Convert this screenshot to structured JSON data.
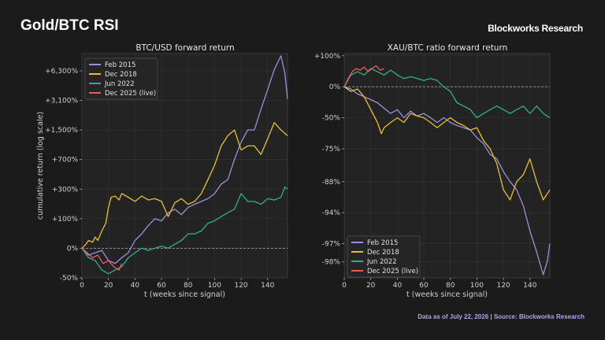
{
  "header": {
    "title": "Gold/BTC RSI",
    "brand": "Blockworks Research"
  },
  "footer": {
    "note": "Data as of July 22, 2026 | Source: Blockworks Research"
  },
  "colors": {
    "background": "#1b1b1b",
    "plot_bg": "#232323",
    "grid": "#343434",
    "Feb 2015": "#9c8fe0",
    "Dec 2018": "#e6c12a",
    "Jun 2022": "#2fb08a",
    "Dec 2025 (live)": "#ee5a5a"
  },
  "chart_data": [
    {
      "type": "line",
      "title": "BTC/USD forward return",
      "xlabel": "t (weeks since signal)",
      "ylabel": "cumulative return (log scale)",
      "xlim": [
        0,
        155
      ],
      "x_ticks": [
        0,
        20,
        40,
        60,
        80,
        100,
        120,
        140
      ],
      "y_scale": "log",
      "y_ticks": [
        "-50%",
        "0%",
        "+100%",
        "+300%",
        "+700%",
        "+1,500%",
        "+3,100%",
        "+6,300%"
      ],
      "y_tick_values": [
        -50,
        0,
        100,
        300,
        700,
        1500,
        3100,
        6300
      ],
      "ylim": [
        -50,
        10000
      ],
      "legend_position": "top-left",
      "grid": true,
      "zero_line": "dashed",
      "series": [
        {
          "name": "Feb 2015",
          "x": [
            0,
            5,
            10,
            15,
            20,
            25,
            30,
            35,
            40,
            45,
            50,
            55,
            60,
            65,
            70,
            75,
            80,
            85,
            90,
            95,
            100,
            105,
            110,
            115,
            120,
            125,
            130,
            135,
            140,
            145,
            150,
            153,
            155
          ],
          "y": [
            0,
            -15,
            -10,
            -5,
            -25,
            -30,
            -20,
            -10,
            20,
            40,
            70,
            100,
            90,
            130,
            150,
            120,
            160,
            180,
            200,
            220,
            260,
            350,
            400,
            700,
            1100,
            1500,
            1500,
            2500,
            4000,
            6500,
            9000,
            6000,
            3200
          ]
        },
        {
          "name": "Dec 2018",
          "x": [
            0,
            3,
            5,
            8,
            10,
            12,
            15,
            18,
            20,
            22,
            25,
            28,
            30,
            35,
            40,
            45,
            50,
            55,
            60,
            65,
            70,
            75,
            80,
            85,
            90,
            95,
            100,
            105,
            110,
            115,
            120,
            125,
            130,
            135,
            140,
            145,
            150,
            155
          ],
          "y": [
            0,
            10,
            20,
            15,
            30,
            20,
            50,
            80,
            160,
            230,
            240,
            210,
            260,
            230,
            200,
            240,
            210,
            220,
            200,
            110,
            190,
            220,
            180,
            200,
            260,
            400,
            600,
            1000,
            1300,
            1500,
            900,
            1000,
            1000,
            800,
            1200,
            1800,
            1500,
            1300
          ]
        },
        {
          "name": "Jun 2022",
          "x": [
            0,
            5,
            10,
            15,
            20,
            25,
            30,
            35,
            40,
            45,
            50,
            55,
            60,
            65,
            70,
            75,
            80,
            85,
            90,
            95,
            100,
            105,
            110,
            115,
            120,
            125,
            130,
            135,
            140,
            145,
            150,
            153,
            155
          ],
          "y": [
            0,
            -20,
            -25,
            -40,
            -45,
            -40,
            -35,
            -20,
            -10,
            0,
            -5,
            0,
            5,
            0,
            10,
            20,
            40,
            40,
            50,
            80,
            90,
            110,
            130,
            150,
            260,
            200,
            200,
            180,
            220,
            210,
            230,
            320,
            300
          ]
        },
        {
          "name": "Dec 2025 (live)",
          "x": [
            0,
            4,
            8,
            12,
            16,
            20,
            24,
            28,
            30
          ],
          "y": [
            0,
            -10,
            -20,
            -15,
            -30,
            -25,
            -35,
            -40,
            -30
          ]
        }
      ]
    },
    {
      "type": "line",
      "title": "XAU/BTC ratio forward return",
      "xlabel": "t (weeks since signal)",
      "ylabel": "",
      "xlim": [
        0,
        155
      ],
      "x_ticks": [
        0,
        20,
        40,
        60,
        80,
        100,
        120,
        140
      ],
      "y_scale": "log",
      "y_ticks": [
        "+100%",
        "0%",
        "-50%",
        "-75%",
        "-88%",
        "-94%",
        "-97%",
        "-98%"
      ],
      "y_tick_values": [
        100,
        0,
        -50,
        -75,
        -88,
        -94,
        -97,
        -98
      ],
      "legend_position": "bottom-left",
      "grid": true,
      "zero_line": "dashed",
      "series": [
        {
          "name": "Feb 2015",
          "x": [
            0,
            5,
            10,
            15,
            20,
            25,
            30,
            35,
            40,
            45,
            50,
            55,
            60,
            65,
            70,
            75,
            80,
            85,
            90,
            95,
            100,
            105,
            110,
            115,
            120,
            125,
            130,
            135,
            140,
            145,
            150,
            153,
            155
          ],
          "y": [
            0,
            -5,
            -15,
            -20,
            -25,
            -30,
            -38,
            -45,
            -40,
            -50,
            -42,
            -48,
            -45,
            -50,
            -55,
            -50,
            -55,
            -58,
            -60,
            -62,
            -68,
            -72,
            -78,
            -80,
            -85,
            -88,
            -90,
            -93,
            -96,
            -97.5,
            -98.5,
            -98,
            -97
          ]
        },
        {
          "name": "Dec 2018",
          "x": [
            0,
            5,
            10,
            15,
            20,
            25,
            28,
            30,
            35,
            40,
            45,
            50,
            55,
            60,
            65,
            70,
            75,
            80,
            85,
            90,
            95,
            100,
            105,
            110,
            115,
            120,
            125,
            130,
            135,
            140,
            145,
            150,
            155
          ],
          "y": [
            0,
            -10,
            -5,
            -20,
            -40,
            -55,
            -65,
            -60,
            -55,
            -50,
            -55,
            -45,
            -48,
            -50,
            -55,
            -60,
            -55,
            -50,
            -55,
            -58,
            -62,
            -60,
            -70,
            -75,
            -82,
            -90,
            -92,
            -88,
            -86,
            -80,
            -88,
            -92,
            -90
          ]
        },
        {
          "name": "Jun 2022",
          "x": [
            0,
            5,
            10,
            15,
            20,
            25,
            30,
            35,
            40,
            45,
            50,
            55,
            60,
            65,
            70,
            75,
            80,
            85,
            90,
            95,
            100,
            105,
            110,
            115,
            120,
            125,
            130,
            135,
            140,
            145,
            150,
            155
          ],
          "y": [
            0,
            30,
            40,
            30,
            50,
            40,
            30,
            45,
            30,
            20,
            25,
            20,
            15,
            20,
            15,
            0,
            -10,
            -30,
            -35,
            -40,
            -50,
            -45,
            -40,
            -35,
            -40,
            -45,
            -40,
            -35,
            -45,
            -35,
            -45,
            -50
          ]
        },
        {
          "name": "Dec 2025 (live)",
          "x": [
            0,
            3,
            6,
            9,
            12,
            15,
            18,
            21,
            24,
            27,
            30
          ],
          "y": [
            0,
            20,
            40,
            50,
            45,
            55,
            40,
            50,
            60,
            45,
            50
          ]
        }
      ]
    }
  ]
}
